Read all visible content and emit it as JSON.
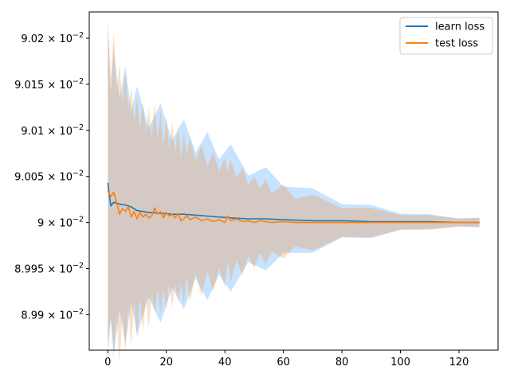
{
  "chart_data": {
    "type": "line",
    "title": "",
    "xlabel": "",
    "ylabel": "",
    "xlim": [
      -6.35,
      133.35
    ],
    "ylim": [
      0.0898615,
      0.0902285
    ],
    "grid": false,
    "legend": "top-right",
    "x_ticks": [
      0,
      20,
      40,
      60,
      80,
      100,
      120
    ],
    "y_ticks": [
      {
        "value": 0.0899,
        "mant": "8.99",
        "exp": "−2"
      },
      {
        "value": 0.08995,
        "mant": "8.995",
        "exp": "−2"
      },
      {
        "value": 0.09,
        "mant": "9",
        "exp": "−2"
      },
      {
        "value": 0.09005,
        "mant": "9.005",
        "exp": "−2"
      },
      {
        "value": 0.0901,
        "mant": "9.01",
        "exp": "−2"
      },
      {
        "value": 0.09015,
        "mant": "9.015",
        "exp": "−2"
      },
      {
        "value": 0.0902,
        "mant": "9.02",
        "exp": "−2"
      }
    ],
    "series": [
      {
        "name": "learn loss",
        "color": "#1f77b4",
        "band_color": "#1f8fff",
        "band_opacity": 0.25,
        "points": [
          [
            0,
            0.090043
          ],
          [
            1,
            0.090018
          ],
          [
            2,
            0.090022
          ],
          [
            4,
            0.09002
          ],
          [
            6,
            0.090019
          ],
          [
            8,
            0.090017
          ],
          [
            10,
            0.090013
          ],
          [
            14,
            0.090011
          ],
          [
            18,
            0.09001
          ],
          [
            22,
            0.090009
          ],
          [
            26,
            0.090009
          ],
          [
            30,
            0.090008
          ],
          [
            34,
            0.090007
          ],
          [
            38,
            0.090006
          ],
          [
            42,
            0.090005
          ],
          [
            48,
            0.090004
          ],
          [
            54,
            0.090004
          ],
          [
            60,
            0.090003
          ],
          [
            70,
            0.090002
          ],
          [
            80,
            0.090002
          ],
          [
            90,
            0.090001
          ],
          [
            100,
            0.090001
          ],
          [
            110,
            0.090001
          ],
          [
            120,
            0.09
          ],
          [
            127,
            0.09
          ]
        ],
        "band_halfwidth": [
          [
            0,
            0.000175
          ],
          [
            10,
            0.000135
          ],
          [
            20,
            0.000115
          ],
          [
            30,
            9.5e-05
          ],
          [
            40,
            8.5e-05
          ],
          [
            50,
            6e-05
          ],
          [
            60,
            5e-05
          ],
          [
            70,
            3.5e-05
          ],
          [
            80,
            2.5e-05
          ],
          [
            90,
            1.8e-05
          ],
          [
            100,
            1.2e-05
          ],
          [
            110,
            8e-06
          ],
          [
            120,
            6e-06
          ],
          [
            127,
            5e-06
          ]
        ]
      },
      {
        "name": "test loss",
        "color": "#ff7f0e",
        "band_color": "#ff7f0e",
        "band_opacity": 0.25,
        "points": [
          [
            0,
            0.090035
          ],
          [
            1,
            0.090028
          ],
          [
            2,
            0.090033
          ],
          [
            3,
            0.090022
          ],
          [
            4,
            0.090009
          ],
          [
            5,
            0.090015
          ],
          [
            6,
            0.090012
          ],
          [
            7,
            0.090017
          ],
          [
            8,
            0.090006
          ],
          [
            9,
            0.090012
          ],
          [
            10,
            0.090004
          ],
          [
            11,
            0.090011
          ],
          [
            12,
            0.090006
          ],
          [
            13,
            0.090009
          ],
          [
            14,
            0.090005
          ],
          [
            15,
            0.090007
          ],
          [
            16,
            0.090016
          ],
          [
            17,
            0.090009
          ],
          [
            18,
            0.090012
          ],
          [
            19,
            0.090005
          ],
          [
            20,
            0.090011
          ],
          [
            21,
            0.090007
          ],
          [
            22,
            0.090009
          ],
          [
            23,
            0.090005
          ],
          [
            24,
            0.09001
          ],
          [
            25,
            0.090002
          ],
          [
            26,
            0.090004
          ],
          [
            27,
            0.090008
          ],
          [
            28,
            0.090003
          ],
          [
            30,
            0.090006
          ],
          [
            32,
            0.090002
          ],
          [
            34,
            0.090004
          ],
          [
            36,
            0.090001
          ],
          [
            38,
            0.090003
          ],
          [
            40,
            0.09
          ],
          [
            41,
            0.090007
          ],
          [
            42,
            0.090002
          ],
          [
            44,
            0.090004
          ],
          [
            46,
            0.090001
          ],
          [
            48,
            0.090002
          ],
          [
            50,
            0.09
          ],
          [
            52,
            0.090002
          ],
          [
            54,
            0.090001
          ],
          [
            56,
            0.09
          ],
          [
            60,
            0.090001
          ],
          [
            64,
            0.09
          ],
          [
            70,
            0.09
          ],
          [
            80,
            0.09
          ],
          [
            90,
            0.09
          ],
          [
            100,
            0.09
          ],
          [
            110,
            0.09
          ],
          [
            120,
            0.09
          ],
          [
            127,
            0.09
          ]
        ],
        "band_halfwidth": [
          [
            0,
            0.000185
          ],
          [
            10,
            0.00013
          ],
          [
            20,
            0.000105
          ],
          [
            30,
            8.5e-05
          ],
          [
            40,
            7e-05
          ],
          [
            50,
            5e-05
          ],
          [
            60,
            4e-05
          ],
          [
            70,
            3e-05
          ],
          [
            80,
            2.2e-05
          ],
          [
            90,
            1.6e-05
          ],
          [
            100,
            1.1e-05
          ],
          [
            110,
            8e-06
          ],
          [
            120,
            6e-06
          ],
          [
            127,
            5e-06
          ]
        ]
      }
    ]
  }
}
